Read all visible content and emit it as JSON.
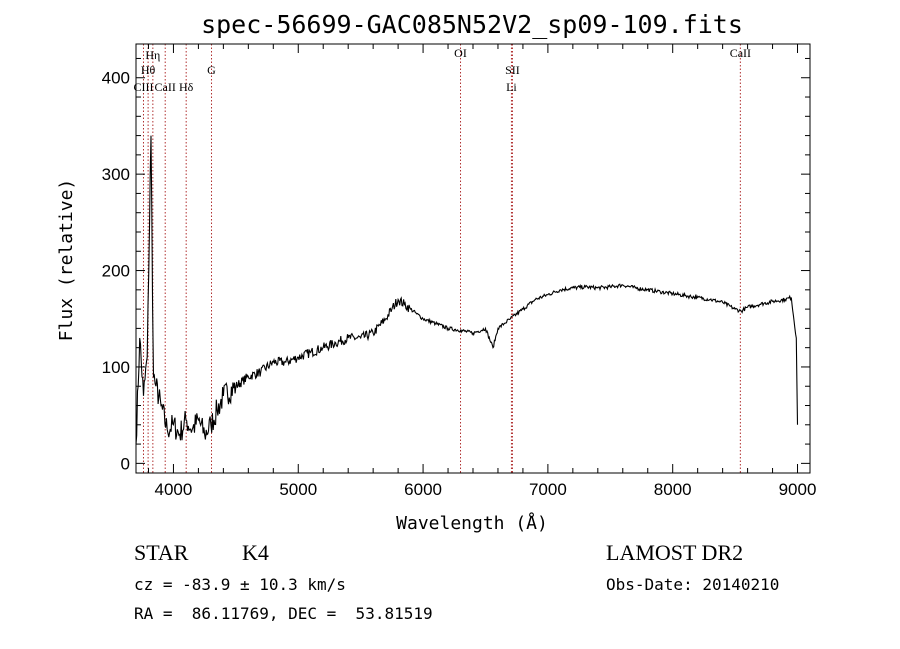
{
  "chart_data": {
    "type": "line",
    "title": "spec-56699-GAC085N52V2_sp09-109.fits",
    "xlabel": "Wavelength (Å)",
    "ylabel": "Flux (relative)",
    "xlim": [
      3700,
      9100
    ],
    "ylim": [
      -10,
      435
    ],
    "x_ticks": [
      4000,
      5000,
      6000,
      7000,
      8000,
      9000
    ],
    "y_ticks": [
      0,
      100,
      200,
      300,
      400
    ],
    "grid": false,
    "series": [
      {
        "x": [
          3700,
          3730,
          3760,
          3790,
          3820,
          3840,
          3860,
          3900,
          3950,
          4000,
          4050,
          4100,
          4150,
          4200,
          4250,
          4300,
          4350,
          4400,
          4500,
          4600,
          4700,
          4800,
          4900,
          5000,
          5100,
          5200,
          5300,
          5400,
          5500,
          5600,
          5700,
          5750,
          5800,
          5850,
          5900,
          5950,
          6000,
          6100,
          6200,
          6300,
          6400,
          6500,
          6560,
          6600,
          6650,
          6700,
          6800,
          6900,
          7000,
          7100,
          7200,
          7300,
          7400,
          7500,
          7600,
          7700,
          7800,
          7900,
          8000,
          8100,
          8200,
          8300,
          8400,
          8500,
          8550,
          8600,
          8700,
          8800,
          8900,
          8950,
          8990,
          9000
        ],
        "y": [
          20,
          130,
          70,
          110,
          340,
          90,
          80,
          60,
          35,
          40,
          30,
          45,
          35,
          45,
          30,
          40,
          55,
          70,
          80,
          90,
          95,
          105,
          105,
          110,
          115,
          120,
          125,
          130,
          130,
          135,
          150,
          160,
          170,
          165,
          160,
          155,
          150,
          145,
          140,
          138,
          135,
          140,
          120,
          140,
          145,
          150,
          160,
          170,
          175,
          180,
          182,
          183,
          182,
          183,
          185,
          182,
          180,
          178,
          176,
          174,
          172,
          170,
          167,
          160,
          158,
          162,
          165,
          168,
          170,
          172,
          130,
          40
        ]
      }
    ],
    "spectral_lines": [
      {
        "label": "CaII",
        "x": 3934
      },
      {
        "label": "Hη",
        "x": 3835
      },
      {
        "label": "Hθ",
        "x": 3797
      },
      {
        "label": "CIII",
        "x": 3760
      },
      {
        "label": "Hδ",
        "x": 4102
      },
      {
        "label": "G",
        "x": 4305
      },
      {
        "label": "OI",
        "x": 6300
      },
      {
        "label": "SII",
        "x": 6716
      },
      {
        "label": "Li",
        "x": 6708
      },
      {
        "label": "CaII",
        "x": 8542
      }
    ]
  },
  "info": {
    "object_class": "STAR",
    "subclass": "K4",
    "survey": "LAMOST DR2",
    "cz": "cz = -83.9 ± 10.3 km/s",
    "obs_date": "Obs-Date: 20140210",
    "coords": "RA =  86.11769, DEC =  53.81519"
  },
  "colors": {
    "spectrum": "#000000",
    "line_marker": "#b03030",
    "axes": "#000000"
  }
}
